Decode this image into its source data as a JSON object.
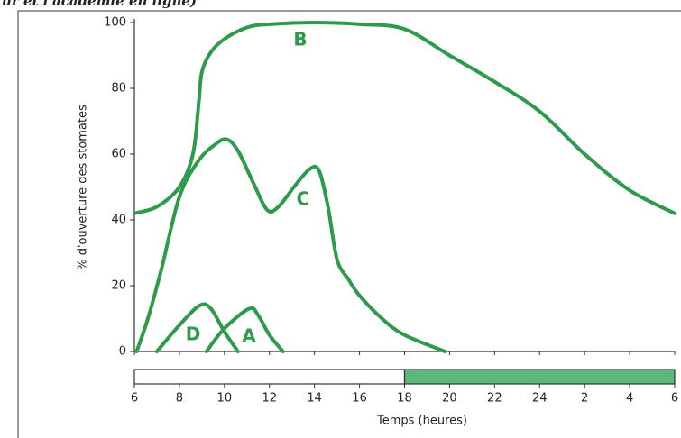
{
  "caption": "ur et l'académie en ligne)",
  "chart_data": {
    "type": "line",
    "xlabel": "Temps (heures)",
    "ylabel": "% d'ouverture des stomates",
    "xlim": [
      6,
      30
    ],
    "ylim": [
      0,
      100
    ],
    "xticks": [
      6,
      8,
      10,
      12,
      14,
      16,
      18,
      20,
      22,
      24,
      {
        "value": 26,
        "label": "2"
      },
      {
        "value": 28,
        "label": "4"
      },
      {
        "value": 30,
        "label": "6"
      }
    ],
    "yticks": [
      0,
      20,
      40,
      60,
      80,
      100
    ],
    "periods": [
      {
        "xlim": [
          6,
          18
        ],
        "color": "#ffffff"
      },
      {
        "xlim": [
          18,
          30
        ],
        "color": "#5cb87a"
      }
    ],
    "series": [
      {
        "name": "A",
        "color": "#2e9a4c",
        "x": [
          9.2,
          10,
          11.1,
          11.5,
          12,
          12.6
        ],
        "values": [
          0,
          7,
          13,
          11,
          5,
          0
        ]
      },
      {
        "name": "B",
        "color": "#2e9a4c",
        "x": [
          6,
          7,
          8,
          8.6,
          8.85,
          9,
          9.4,
          10,
          11,
          12,
          14,
          16,
          18,
          20,
          22,
          24,
          26,
          28,
          30
        ],
        "values": [
          42,
          44,
          50,
          60,
          75,
          85,
          91,
          95,
          98.5,
          99.5,
          100,
          99.5,
          98,
          90,
          82,
          73,
          60,
          49,
          42
        ]
      },
      {
        "name": "C",
        "color": "#2e9a4c",
        "x": [
          6.1,
          6.6,
          7.2,
          8,
          8.85,
          9.6,
          10.1,
          10.6,
          11.3,
          11.9,
          12.4,
          13.2,
          13.8,
          14.2,
          14.6,
          15,
          15.5,
          16,
          17,
          18,
          19.8
        ],
        "values": [
          0,
          10,
          25,
          47,
          58,
          63,
          64.5,
          61,
          51,
          43,
          44,
          51,
          55.5,
          55,
          44,
          28,
          22,
          17,
          10,
          5,
          0
        ]
      },
      {
        "name": "D",
        "color": "#2e9a4c",
        "x": [
          7,
          8,
          8.9,
          9.4,
          10,
          10.6
        ],
        "values": [
          0,
          8,
          14,
          13,
          6,
          0
        ]
      }
    ]
  }
}
